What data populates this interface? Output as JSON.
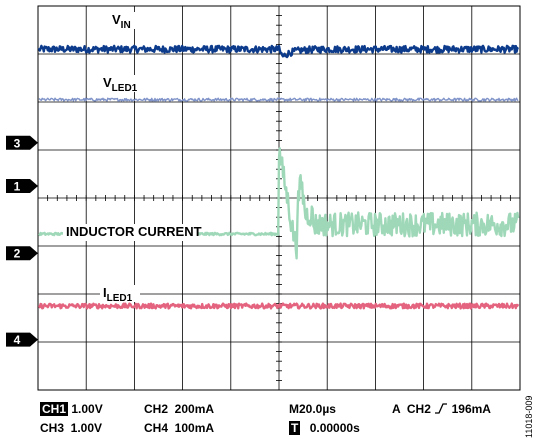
{
  "chart_data": {
    "type": "line",
    "title": "",
    "grid": true,
    "grid_divisions": {
      "horizontal": 10,
      "vertical": 8
    },
    "time_per_division_us": 20,
    "trigger_division": 5,
    "series": [
      {
        "name": "V",
        "sub": "IN",
        "channel": "CH1",
        "color": "#0d3b8c",
        "level_div": 7.1,
        "noise_div": 0.07,
        "style": "thick",
        "dip_div": 0.22
      },
      {
        "name": "V",
        "sub": "LED1",
        "channel": "CH3",
        "color": "#7f93c9",
        "level_div": 6.05,
        "noise_div": 0.03,
        "style": "thin"
      },
      {
        "name": "INDUCTOR CURRENT",
        "sub": "",
        "channel": "CH2",
        "color": "#9fd8b8",
        "level_div": 3.25,
        "level_after_div": 3.45,
        "ripple_after_div": 0.25,
        "peak1_div": 5.0,
        "peak2_div": 4.35,
        "style": "thick"
      },
      {
        "name": "I",
        "sub": "LED1",
        "channel": "CH4",
        "color": "#e4647f",
        "level_div": 1.75,
        "noise_div": 0.05,
        "style": "thick"
      }
    ],
    "channel_markers": [
      {
        "label": "3",
        "level_div": 5.15
      },
      {
        "label": "1",
        "level_div": 4.25
      },
      {
        "label": "2",
        "level_div": 2.85
      },
      {
        "label": "4",
        "level_div": 1.05
      }
    ]
  },
  "status": {
    "ch1_tag": "CH1",
    "ch1_scale": "1.00V",
    "ch2": "CH2  200mA",
    "ch3": "CH3  1.00V",
    "ch4": "CH4  100mA",
    "timebase": "M20.0µs",
    "trigger_src": "A  CH2",
    "trigger_level": "196mA",
    "t_tag": "T",
    "t_pos": "0.00000s"
  },
  "figure_id": "11018-009"
}
